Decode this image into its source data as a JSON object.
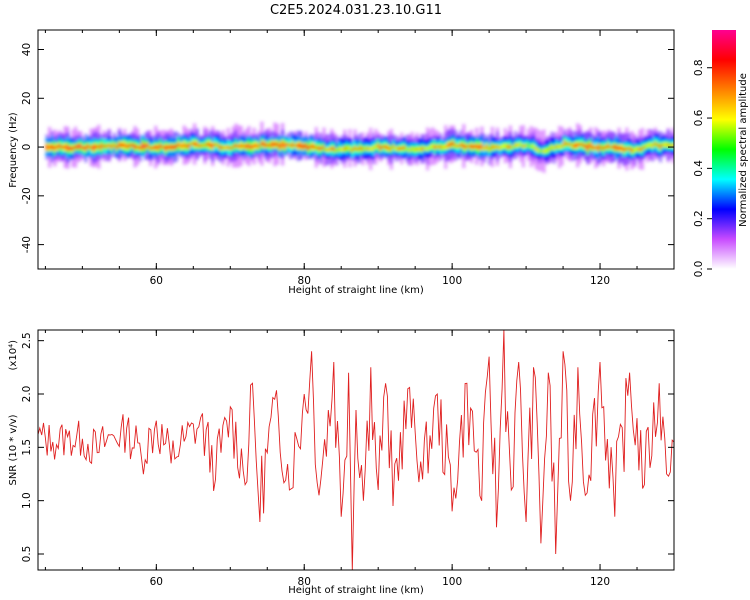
{
  "chart_data": [
    {
      "type": "heatmap",
      "title": "C2E5.2024.031.23.10.G11",
      "xlabel": "Height of straight line (km)",
      "ylabel": "Frequency (Hz)",
      "xlim": [
        44,
        130
      ],
      "ylim": [
        -50,
        48
      ],
      "xticks": [
        "60",
        "80",
        "100",
        "120"
      ],
      "yticks": [
        "40",
        "20",
        "0",
        "-20",
        "-40"
      ],
      "colorbar": {
        "label": "Normalized spectral amplitude",
        "range": [
          0,
          0.95
        ],
        "ticks": [
          "0.0",
          "0.2",
          "0.4",
          "0.6",
          "0.8"
        ],
        "colormap": [
          "#ffffff",
          "#c84bff",
          "#0000ff",
          "#00ffff",
          "#00ff00",
          "#ffff00",
          "#ff8000",
          "#ff0000",
          "#ff0090"
        ]
      },
      "band": {
        "x": [
          45,
          50,
          55,
          60,
          65,
          70,
          75,
          80,
          85,
          90,
          95,
          100,
          105,
          110,
          112,
          115,
          120,
          123,
          125,
          127,
          130
        ],
        "center_hz": [
          0,
          0,
          0.5,
          0,
          1,
          0,
          1,
          0,
          -1,
          0,
          -1,
          1,
          -0.5,
          1,
          -1.5,
          1,
          0,
          -0.5,
          -1,
          1,
          0
        ],
        "peak_amplitude": [
          0.85,
          0.8,
          0.75,
          0.8,
          0.75,
          0.7,
          0.8,
          0.75,
          0.6,
          0.7,
          0.6,
          0.75,
          0.7,
          0.55,
          0.6,
          0.7,
          0.8,
          0.75,
          0.6,
          0.65,
          0.6
        ]
      }
    },
    {
      "type": "line",
      "xlabel": "Height of straight line (km)",
      "ylabel": "SNR (10 * v/v)",
      "y_multiplier": "(x10⁴)",
      "xlim": [
        44,
        130
      ],
      "ylim": [
        0.35,
        2.6
      ],
      "xticks": [
        "60",
        "80",
        "100",
        "120"
      ],
      "yticks": [
        "0.5",
        "1.0",
        "1.5",
        "2.0",
        "2.5"
      ],
      "series": [
        {
          "color": "#e02020",
          "x": [
            44,
            46,
            48,
            50,
            52,
            54,
            56,
            58,
            60,
            62,
            64,
            66,
            68,
            70,
            72,
            73,
            74,
            76,
            78,
            80,
            81,
            82,
            84,
            85,
            86,
            86.5,
            87,
            88,
            89,
            90,
            91,
            92,
            94,
            96,
            98,
            100,
            102,
            104,
            105,
            106,
            107,
            108,
            109,
            110,
            111,
            112,
            113,
            114,
            115,
            116,
            117,
            118,
            120,
            122,
            124,
            126,
            128,
            129,
            130
          ],
          "y": [
            1.62,
            1.55,
            1.6,
            1.58,
            1.45,
            1.62,
            1.68,
            1.4,
            1.75,
            1.35,
            1.6,
            1.78,
            1.2,
            1.88,
            1.15,
            2.1,
            0.8,
            1.95,
            1.1,
            2.0,
            2.4,
            1.05,
            2.3,
            0.85,
            2.2,
            0.35,
            1.85,
            1.0,
            2.25,
            1.1,
            2.1,
            0.95,
            2.05,
            1.2,
            2.0,
            0.9,
            2.1,
            1.0,
            2.35,
            0.75,
            2.6,
            1.1,
            2.3,
            0.8,
            2.25,
            0.6,
            2.2,
            0.5,
            2.4,
            1.0,
            2.25,
            1.05,
            2.3,
            0.85,
            2.2,
            1.15,
            2.1,
            1.25,
            1.55
          ]
        }
      ]
    }
  ]
}
